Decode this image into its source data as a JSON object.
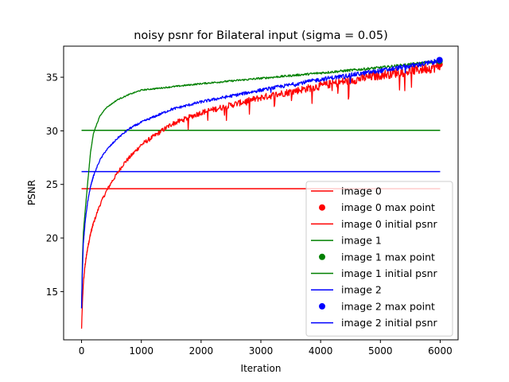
{
  "chart_data": {
    "type": "line",
    "title": "noisy psnr for Bilateral input (sigma = 0.05)",
    "xlabel": "Iteration",
    "ylabel": "PSNR",
    "xlim": [
      -300,
      6300
    ],
    "ylim": [
      10.5,
      37.9
    ],
    "xticks": [
      0,
      1000,
      2000,
      3000,
      4000,
      5000,
      6000
    ],
    "yticks": [
      15,
      20,
      25,
      30,
      35
    ],
    "legend_position": "lower right",
    "grid": false,
    "series": [
      {
        "name": "image 0",
        "color": "#ff0000",
        "noise": 0.35,
        "points": [
          [
            0,
            11.5
          ],
          [
            15,
            14
          ],
          [
            30,
            15.8
          ],
          [
            60,
            17.5
          ],
          [
            100,
            19
          ],
          [
            150,
            20.4
          ],
          [
            200,
            21.4
          ],
          [
            300,
            23
          ],
          [
            400,
            24.2
          ],
          [
            500,
            25.2
          ],
          [
            700,
            26.9
          ],
          [
            1000,
            28.7
          ],
          [
            1500,
            30.6
          ],
          [
            2000,
            31.7
          ],
          [
            3000,
            33.1
          ],
          [
            4000,
            34.2
          ],
          [
            5000,
            35.2
          ],
          [
            6000,
            36
          ]
        ],
        "max_point": [
          5990,
          36.2
        ],
        "max_label": "image 0 max point",
        "initial_psnr": 24.6,
        "initial_label": "image 0 initial psnr"
      },
      {
        "name": "image 1",
        "color": "#008000",
        "noise": 0.1,
        "points": [
          [
            0,
            13.5
          ],
          [
            15,
            18
          ],
          [
            30,
            20.5
          ],
          [
            60,
            22.5
          ],
          [
            100,
            25
          ],
          [
            150,
            28
          ],
          [
            200,
            29.8
          ],
          [
            300,
            31.3
          ],
          [
            400,
            32.1
          ],
          [
            600,
            32.9
          ],
          [
            800,
            33.4
          ],
          [
            1000,
            33.8
          ],
          [
            1500,
            34.1
          ],
          [
            2000,
            34.4
          ],
          [
            3000,
            34.9
          ],
          [
            4000,
            35.4
          ],
          [
            5000,
            35.9
          ],
          [
            6000,
            36.5
          ]
        ],
        "max_point": [
          5990,
          36.5
        ],
        "max_label": "image 1 max point",
        "initial_psnr": 30.05,
        "initial_label": "image 1 initial psnr"
      },
      {
        "name": "image 2",
        "color": "#0000ff",
        "noise": 0.18,
        "points": [
          [
            0,
            13.5
          ],
          [
            15,
            17
          ],
          [
            30,
            19.5
          ],
          [
            60,
            21.5
          ],
          [
            100,
            23.3
          ],
          [
            150,
            24.8
          ],
          [
            200,
            25.8
          ],
          [
            300,
            27.2
          ],
          [
            400,
            28.1
          ],
          [
            600,
            29.3
          ],
          [
            800,
            30.2
          ],
          [
            1000,
            30.8
          ],
          [
            1500,
            32
          ],
          [
            2000,
            32.7
          ],
          [
            3000,
            33.8
          ],
          [
            4000,
            34.8
          ],
          [
            5000,
            35.6
          ],
          [
            6000,
            36.5
          ]
        ],
        "max_point": [
          5990,
          36.6
        ],
        "max_label": "image 2 max point",
        "initial_psnr": 26.2,
        "initial_label": "image 2 initial psnr"
      }
    ]
  }
}
